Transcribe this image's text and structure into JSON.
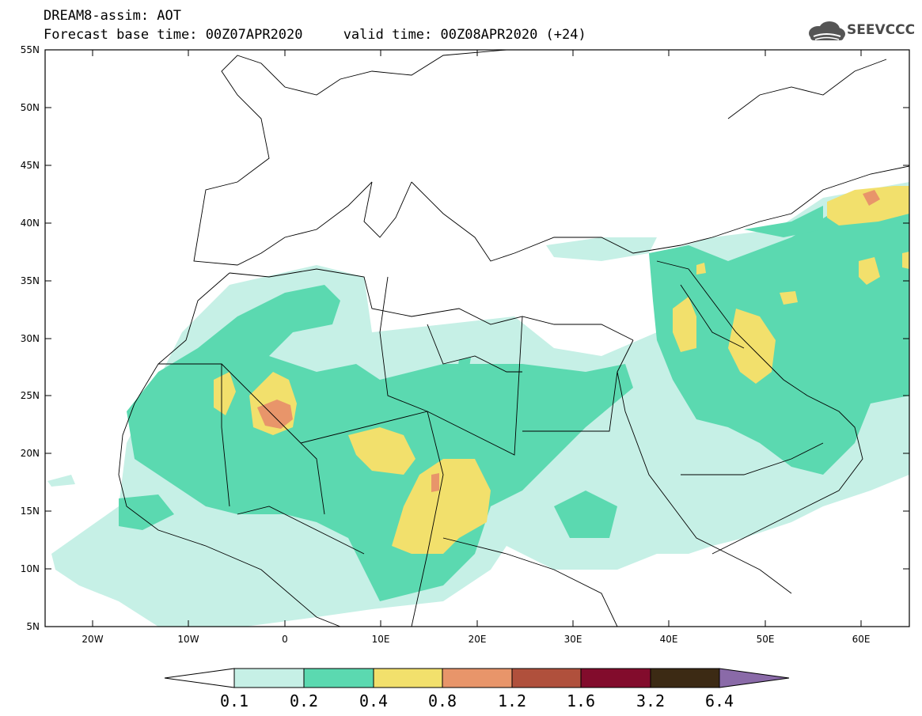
{
  "header": {
    "title_line1": "DREAM8-assim: AOT",
    "title_line2": "Forecast base time: 00Z07APR2020     valid time: 00Z08APR2020 (+24)",
    "logo_text": "SEEVCCC"
  },
  "map": {
    "lon_range": [
      -25,
      65
    ],
    "lat_range": [
      5,
      55
    ],
    "lat_ticks": [
      "55N",
      "50N",
      "45N",
      "40N",
      "35N",
      "30N",
      "25N",
      "20N",
      "15N",
      "10N",
      "5N"
    ],
    "lon_ticks": [
      "20W",
      "10W",
      "0",
      "10E",
      "20E",
      "30E",
      "40E",
      "50E",
      "60E"
    ]
  },
  "colorbar": {
    "labels": [
      "0.1",
      "0.2",
      "0.4",
      "0.8",
      "1.2",
      "1.6",
      "3.2",
      "6.4"
    ],
    "colors": [
      "#ffffff",
      "#c6f0e6",
      "#5bd9b0",
      "#f2e06c",
      "#e8956a",
      "#b0503c",
      "#820c2c",
      "#3c2a14",
      "#8a6aa8"
    ]
  }
}
